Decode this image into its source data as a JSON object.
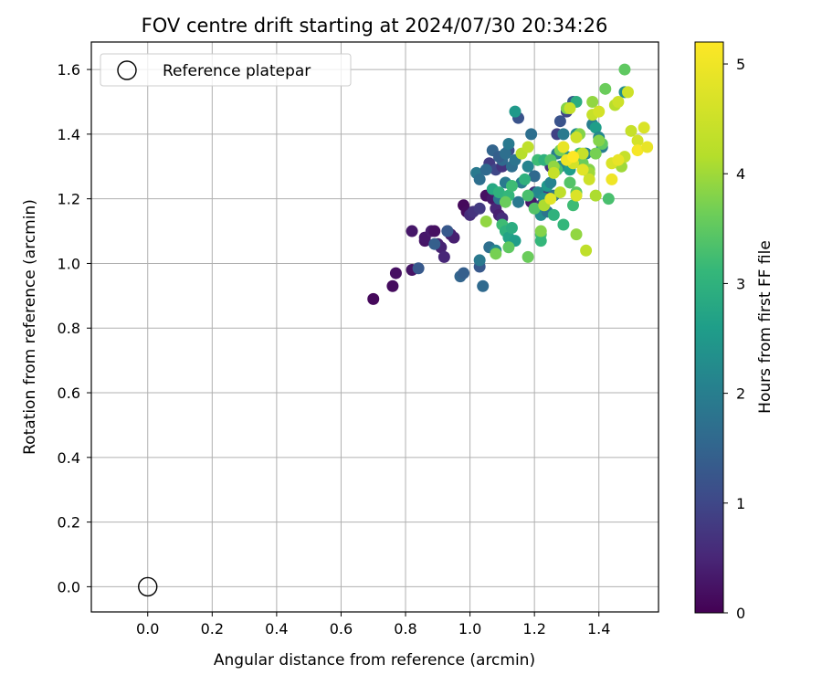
{
  "chart_data": {
    "type": "scatter",
    "title": "FOV centre drift starting at 2024/07/30 20:34:26",
    "xlabel": "Angular distance from reference (arcmin)",
    "ylabel": "Rotation from reference (arcmin)",
    "xlim": [
      -0.175,
      1.585
    ],
    "ylim": [
      -0.078,
      1.685
    ],
    "xticks": [
      "0.0",
      "0.2",
      "0.4",
      "0.6",
      "0.8",
      "1.0",
      "1.2",
      "1.4"
    ],
    "yticks": [
      "0.0",
      "0.2",
      "0.4",
      "0.6",
      "0.8",
      "1.0",
      "1.2",
      "1.4",
      "1.6"
    ],
    "grid": true,
    "legend": {
      "placement": "top-left",
      "entries": [
        "Reference platepar"
      ]
    },
    "reference_point": {
      "x": 0.0,
      "y": 0.0
    },
    "colorbar": {
      "label": "Hours from first FF file",
      "colormap": "viridis",
      "range": [
        0,
        5.2
      ],
      "ticks": [
        "0",
        "1",
        "2",
        "3",
        "4",
        "5"
      ]
    },
    "points": [
      [
        0.7,
        0.89,
        0.1
      ],
      [
        0.76,
        0.93,
        0.15
      ],
      [
        0.77,
        0.97,
        0.2
      ],
      [
        0.82,
        0.98,
        0.25
      ],
      [
        0.82,
        1.1,
        0.3
      ],
      [
        0.86,
        1.07,
        0.25
      ],
      [
        0.86,
        1.08,
        0.3
      ],
      [
        0.88,
        1.1,
        0.35
      ],
      [
        0.89,
        1.1,
        0.2
      ],
      [
        0.9,
        1.06,
        0.4
      ],
      [
        0.91,
        1.05,
        0.45
      ],
      [
        0.92,
        1.02,
        0.5
      ],
      [
        0.93,
        1.1,
        0.55
      ],
      [
        0.94,
        1.09,
        0.35
      ],
      [
        0.95,
        1.08,
        0.4
      ],
      [
        0.98,
        1.18,
        0.1
      ],
      [
        0.99,
        1.16,
        0.15
      ],
      [
        1.0,
        1.15,
        0.6
      ],
      [
        1.01,
        1.16,
        0.7
      ],
      [
        1.03,
        1.17,
        0.8
      ],
      [
        1.05,
        1.21,
        0.2
      ],
      [
        1.07,
        1.2,
        0.3
      ],
      [
        1.08,
        1.17,
        0.5
      ],
      [
        1.09,
        1.15,
        0.4
      ],
      [
        1.1,
        1.14,
        0.6
      ],
      [
        1.06,
        1.31,
        0.8
      ],
      [
        1.08,
        1.29,
        1.0
      ],
      [
        1.1,
        1.3,
        0.7
      ],
      [
        1.12,
        1.35,
        1.1
      ],
      [
        1.15,
        1.45,
        1.2
      ],
      [
        1.19,
        1.19,
        0.3
      ],
      [
        1.2,
        1.22,
        0.6
      ],
      [
        1.22,
        1.18,
        0.8
      ],
      [
        1.23,
        1.22,
        0.9
      ],
      [
        1.25,
        1.3,
        0.7
      ],
      [
        1.27,
        1.4,
        0.9
      ],
      [
        1.28,
        1.44,
        1.2
      ],
      [
        1.3,
        1.47,
        1.0
      ],
      [
        1.32,
        1.5,
        1.3
      ],
      [
        0.84,
        0.985,
        1.3
      ],
      [
        0.89,
        1.06,
        1.4
      ],
      [
        0.93,
        1.1,
        1.3
      ],
      [
        0.97,
        0.96,
        1.5
      ],
      [
        0.98,
        0.97,
        1.4
      ],
      [
        1.03,
        0.99,
        1.3
      ],
      [
        1.04,
        0.93,
        1.6
      ],
      [
        1.03,
        1.01,
        1.9
      ],
      [
        1.06,
        1.05,
        1.7
      ],
      [
        1.08,
        1.04,
        2.2
      ],
      [
        1.09,
        1.2,
        1.8
      ],
      [
        1.1,
        1.32,
        1.6
      ],
      [
        1.11,
        1.25,
        1.9
      ],
      [
        1.02,
        1.28,
        1.9
      ],
      [
        1.03,
        1.26,
        1.7
      ],
      [
        1.05,
        1.29,
        1.6
      ],
      [
        1.07,
        1.35,
        1.5
      ],
      [
        1.09,
        1.33,
        1.4
      ],
      [
        1.11,
        1.34,
        1.7
      ],
      [
        1.12,
        1.37,
        1.9
      ],
      [
        1.13,
        1.3,
        1.7
      ],
      [
        1.14,
        1.32,
        1.8
      ],
      [
        1.15,
        1.19,
        1.9
      ],
      [
        1.16,
        1.25,
        2.0
      ],
      [
        1.18,
        1.3,
        2.1
      ],
      [
        1.19,
        1.4,
        1.7
      ],
      [
        1.2,
        1.27,
        1.6
      ],
      [
        1.21,
        1.22,
        2.2
      ],
      [
        1.22,
        1.15,
        2.3
      ],
      [
        1.23,
        1.2,
        2.4
      ],
      [
        1.24,
        1.24,
        2.5
      ],
      [
        1.24,
        1.16,
        1.8
      ],
      [
        1.25,
        1.25,
        2.1
      ],
      [
        1.26,
        1.21,
        1.8
      ],
      [
        1.27,
        1.34,
        2.0
      ],
      [
        1.28,
        1.3,
        2.2
      ],
      [
        1.29,
        1.4,
        1.9
      ],
      [
        1.3,
        1.33,
        2.4
      ],
      [
        1.31,
        1.29,
        2.6
      ],
      [
        1.32,
        1.32,
        1.7
      ],
      [
        1.33,
        1.4,
        2.3
      ],
      [
        1.34,
        1.33,
        2.8
      ],
      [
        1.35,
        1.3,
        2.5
      ],
      [
        1.36,
        1.34,
        2.1
      ],
      [
        1.37,
        1.28,
        2.7
      ],
      [
        1.38,
        1.43,
        2.0
      ],
      [
        1.39,
        1.42,
        2.6
      ],
      [
        1.4,
        1.39,
        2.2
      ],
      [
        1.41,
        1.36,
        2.0
      ],
      [
        1.33,
        1.5,
        2.9
      ],
      [
        1.14,
        1.47,
        2.5
      ],
      [
        1.48,
        1.53,
        2.3
      ],
      [
        1.07,
        1.23,
        2.8
      ],
      [
        1.09,
        1.22,
        3.0
      ],
      [
        1.1,
        1.12,
        3.2
      ],
      [
        1.11,
        1.1,
        3.0
      ],
      [
        1.12,
        1.08,
        2.7
      ],
      [
        1.13,
        1.11,
        2.9
      ],
      [
        1.14,
        1.07,
        2.6
      ],
      [
        1.12,
        1.21,
        3.1
      ],
      [
        1.13,
        1.24,
        3.2
      ],
      [
        1.17,
        1.26,
        3.0
      ],
      [
        1.18,
        1.21,
        3.3
      ],
      [
        1.2,
        1.17,
        3.4
      ],
      [
        1.21,
        1.32,
        3.2
      ],
      [
        1.22,
        1.09,
        3.3
      ],
      [
        1.22,
        1.07,
        3.1
      ],
      [
        1.23,
        1.32,
        3.0
      ],
      [
        1.25,
        1.32,
        3.4
      ],
      [
        1.26,
        1.15,
        3.0
      ],
      [
        1.27,
        1.29,
        3.3
      ],
      [
        1.29,
        1.12,
        3.1
      ],
      [
        1.31,
        1.25,
        3.4
      ],
      [
        1.32,
        1.18,
        3.2
      ],
      [
        1.33,
        1.22,
        3.5
      ],
      [
        1.34,
        1.34,
        3.3
      ],
      [
        1.35,
        1.31,
        3.6
      ],
      [
        1.37,
        1.29,
        3.8
      ],
      [
        1.39,
        1.34,
        3.7
      ],
      [
        1.41,
        1.37,
        3.5
      ],
      [
        1.43,
        1.2,
        3.3
      ],
      [
        1.48,
        1.6,
        3.5
      ],
      [
        1.05,
        1.13,
        3.9
      ],
      [
        1.08,
        1.03,
        3.7
      ],
      [
        1.11,
        1.19,
        3.6
      ],
      [
        1.12,
        1.05,
        3.5
      ],
      [
        1.18,
        1.02,
        3.6
      ],
      [
        1.22,
        1.1,
        3.8
      ],
      [
        1.26,
        1.3,
        3.9
      ],
      [
        1.28,
        1.35,
        3.7
      ],
      [
        1.3,
        1.48,
        3.8
      ],
      [
        1.33,
        1.09,
        3.9
      ],
      [
        1.34,
        1.4,
        3.8
      ],
      [
        1.37,
        1.28,
        4.0
      ],
      [
        1.38,
        1.5,
        3.9
      ],
      [
        1.39,
        1.21,
        4.1
      ],
      [
        1.4,
        1.38,
        3.8
      ],
      [
        1.42,
        1.54,
        3.6
      ],
      [
        1.45,
        1.49,
        4.2
      ],
      [
        1.47,
        1.3,
        4.0
      ],
      [
        1.16,
        1.34,
        4.2
      ],
      [
        1.18,
        1.36,
        4.3
      ],
      [
        1.23,
        1.18,
        4.1
      ],
      [
        1.26,
        1.28,
        4.4
      ],
      [
        1.28,
        1.22,
        4.3
      ],
      [
        1.31,
        1.48,
        4.4
      ],
      [
        1.32,
        1.31,
        4.6
      ],
      [
        1.33,
        1.39,
        4.5
      ],
      [
        1.35,
        1.34,
        4.4
      ],
      [
        1.36,
        1.04,
        4.3
      ],
      [
        1.37,
        1.26,
        4.5
      ],
      [
        1.38,
        1.46,
        4.4
      ],
      [
        1.4,
        1.47,
        4.6
      ],
      [
        1.44,
        1.31,
        4.7
      ],
      [
        1.46,
        1.5,
        4.5
      ],
      [
        1.48,
        1.33,
        4.4
      ],
      [
        1.49,
        1.53,
        4.5
      ],
      [
        1.5,
        1.41,
        4.4
      ],
      [
        1.52,
        1.38,
        4.6
      ],
      [
        1.54,
        1.42,
        4.7
      ],
      [
        1.25,
        1.2,
        4.8
      ],
      [
        1.29,
        1.36,
        4.9
      ],
      [
        1.3,
        1.32,
        5.0
      ],
      [
        1.33,
        1.21,
        4.7
      ],
      [
        1.35,
        1.29,
        4.8
      ],
      [
        1.44,
        1.26,
        5.0
      ],
      [
        1.46,
        1.32,
        4.9
      ],
      [
        1.52,
        1.35,
        5.1
      ],
      [
        1.55,
        1.36,
        4.9
      ],
      [
        1.32,
        1.33,
        5.2
      ]
    ]
  }
}
